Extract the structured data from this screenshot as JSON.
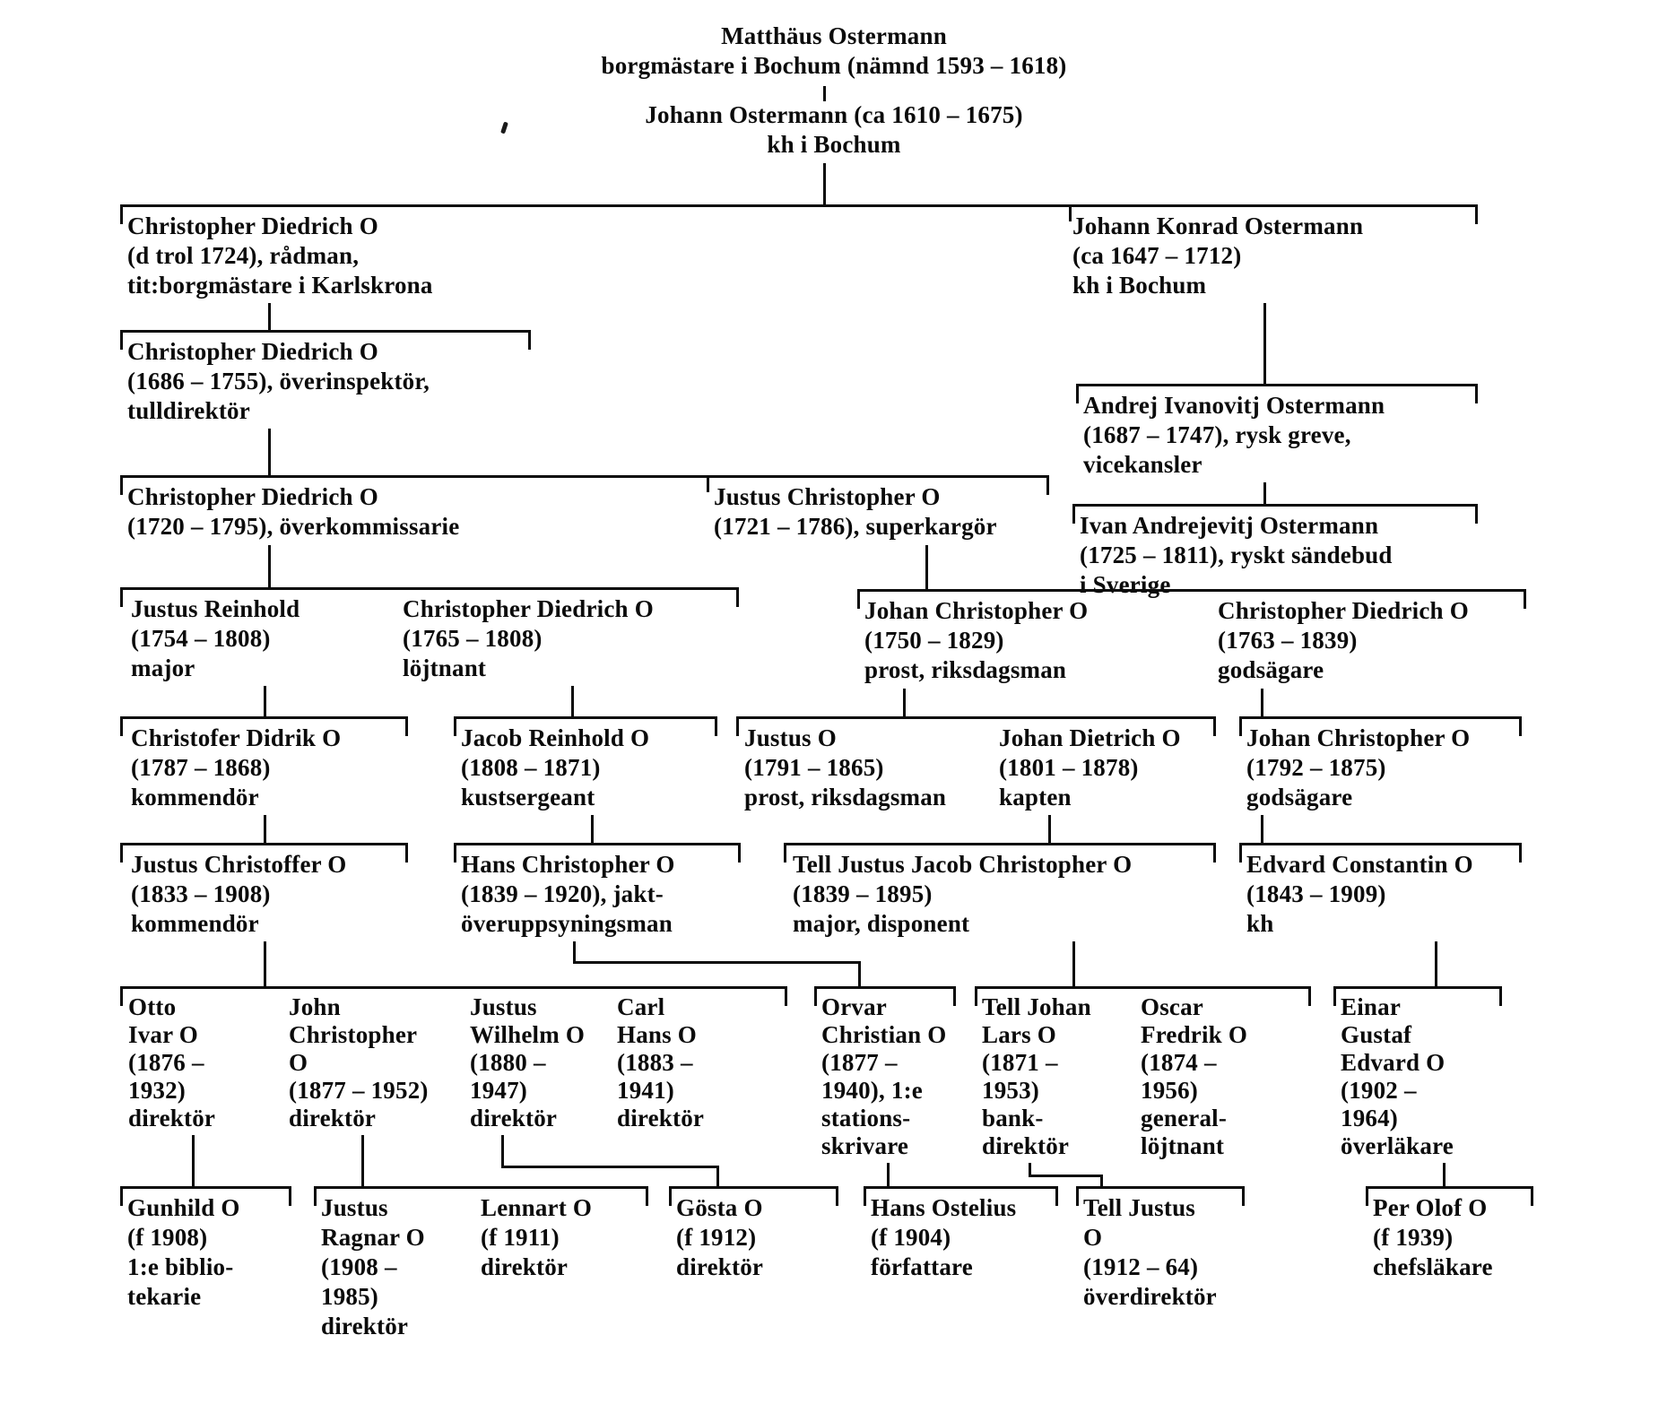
{
  "document": {
    "type": "family-tree",
    "family": "Ostermann",
    "language": "Swedish",
    "ink_color": "#0b0b0b",
    "paper_color": "#ffffff"
  },
  "persons": [
    {
      "id": "matthaus-ostermann",
      "lines": [
        "Matthäus Ostermann",
        "borgmästare i Bochum (nämnd 1593 – 1618)"
      ]
    },
    {
      "id": "johann-ostermann",
      "lines": [
        "Johann Ostermann (ca 1610 – 1675)",
        "kh i Bochum"
      ]
    },
    {
      "id": "christopher-diedrich-radman",
      "lines": [
        "Christopher Diedrich O",
        "(d trol 1724), rådman,",
        "tit:borgmästare i Karlskrona"
      ]
    },
    {
      "id": "johann-konrad-ostermann",
      "lines": [
        "Johann Konrad Ostermann",
        "(ca 1647 – 1712)",
        "kh i Bochum"
      ]
    },
    {
      "id": "christopher-diedrich-1686",
      "lines": [
        "Christopher Diedrich O",
        "(1686 – 1755), överinspektör,",
        "tulldirektör"
      ]
    },
    {
      "id": "andrej-ivanovitj-ostermann",
      "lines": [
        "Andrej Ivanovitj Ostermann",
        "(1687 – 1747), rysk greve,",
        "vicekansler"
      ]
    },
    {
      "id": "christopher-diedrich-1720",
      "lines": [
        "Christopher Diedrich O",
        "(1720 – 1795), överkommissarie"
      ]
    },
    {
      "id": "justus-christopher-1721",
      "lines": [
        "Justus Christopher O",
        "(1721 – 1786), superkargör"
      ]
    },
    {
      "id": "ivan-andrejevitj-ostermann",
      "lines": [
        "Ivan Andrejevitj Ostermann",
        "(1725 – 1811), ryskt sändebud",
        "i Sverige"
      ]
    },
    {
      "id": "justus-reinhold",
      "lines": [
        "Justus Reinhold",
        "(1754 – 1808)",
        "major"
      ]
    },
    {
      "id": "christopher-diedrich-1765",
      "lines": [
        "Christopher Diedrich O",
        "(1765 – 1808)",
        "löjtnant"
      ]
    },
    {
      "id": "johan-christopher-1750",
      "lines": [
        "Johan Christopher O",
        "(1750 – 1829)",
        "prost, riksdagsman"
      ]
    },
    {
      "id": "christopher-diedrich-1763",
      "lines": [
        "Christopher Diedrich O",
        "(1763 – 1839)",
        "godsägare"
      ]
    },
    {
      "id": "christofer-didrik",
      "lines": [
        "Christofer Didrik O",
        "(1787 – 1868)",
        "kommendör"
      ]
    },
    {
      "id": "jacob-reinhold",
      "lines": [
        "Jacob Reinhold O",
        "(1808 – 1871)",
        "kustsergeant"
      ]
    },
    {
      "id": "justus-1791",
      "lines": [
        "Justus O",
        "(1791 – 1865)",
        "prost, riksdagsman"
      ]
    },
    {
      "id": "johan-dietrich",
      "lines": [
        "Johan Dietrich O",
        "(1801 – 1878)",
        "kapten"
      ]
    },
    {
      "id": "johan-christopher-1792",
      "lines": [
        "Johan Christopher O",
        "(1792 – 1875)",
        "godsägare"
      ]
    },
    {
      "id": "justus-christoffer-1833",
      "lines": [
        "Justus Christoffer O",
        "(1833 – 1908)",
        "kommendör"
      ]
    },
    {
      "id": "hans-christopher-1839",
      "lines": [
        "Hans Christopher O",
        "(1839 – 1920), jakt-",
        "överuppsyningsman"
      ]
    },
    {
      "id": "tell-justus-jacob-christopher",
      "lines": [
        "Tell Justus Jacob Christopher O",
        "(1839 – 1895)",
        "major, disponent"
      ]
    },
    {
      "id": "edvard-constantin",
      "lines": [
        "Edvard Constantin O",
        "(1843 – 1909)",
        "kh"
      ]
    },
    {
      "id": "otto-ivar",
      "lines": [
        "Otto",
        "Ivar O",
        "(1876 –",
        "1932)",
        "direktör"
      ]
    },
    {
      "id": "john-christopher",
      "lines": [
        "John",
        "Christopher",
        "O",
        "(1877 – 1952)",
        "direktör"
      ]
    },
    {
      "id": "justus-wilhelm",
      "lines": [
        "Justus",
        "Wilhelm O",
        "(1880 –",
        "1947)",
        "direktör"
      ]
    },
    {
      "id": "carl-hans",
      "lines": [
        "Carl",
        "Hans O",
        "(1883 –",
        "1941)",
        "direktör"
      ]
    },
    {
      "id": "orvar-christian",
      "lines": [
        "Orvar",
        "Christian O",
        "(1877 –",
        "1940), 1:e",
        "stations-",
        "skrivare"
      ]
    },
    {
      "id": "tell-johan-lars",
      "lines": [
        "Tell Johan",
        "Lars O",
        "(1871 –",
        "1953)",
        "bank-",
        "direktör"
      ]
    },
    {
      "id": "oscar-fredrik",
      "lines": [
        "Oscar",
        "Fredrik O",
        "(1874 –",
        "1956)",
        "general-",
        "löjtnant"
      ]
    },
    {
      "id": "einar-gustaf-edvard",
      "lines": [
        "Einar",
        "Gustaf",
        "Edvard O",
        "(1902 –",
        "1964)",
        "överläkare"
      ]
    },
    {
      "id": "gunhild",
      "lines": [
        "Gunhild O",
        "(f 1908)",
        "1:e biblio-",
        "tekarie"
      ]
    },
    {
      "id": "justus-ragnar",
      "lines": [
        "Justus",
        "Ragnar O",
        "(1908 –",
        "1985)",
        "direktör"
      ]
    },
    {
      "id": "lennart",
      "lines": [
        "Lennart O",
        "(f 1911)",
        "direktör"
      ]
    },
    {
      "id": "gosta",
      "lines": [
        "Gösta O",
        "(f 1912)",
        "direktör"
      ]
    },
    {
      "id": "hans-ostelius",
      "lines": [
        "Hans Ostelius",
        "(f 1904)",
        "författare"
      ]
    },
    {
      "id": "tell-justus-o",
      "lines": [
        "Tell Justus",
        "O",
        "(1912 – 64)",
        "överdirektör"
      ]
    },
    {
      "id": "per-olof",
      "lines": [
        "Per Olof O",
        "(f 1939)",
        "chefsläkare"
      ]
    }
  ]
}
